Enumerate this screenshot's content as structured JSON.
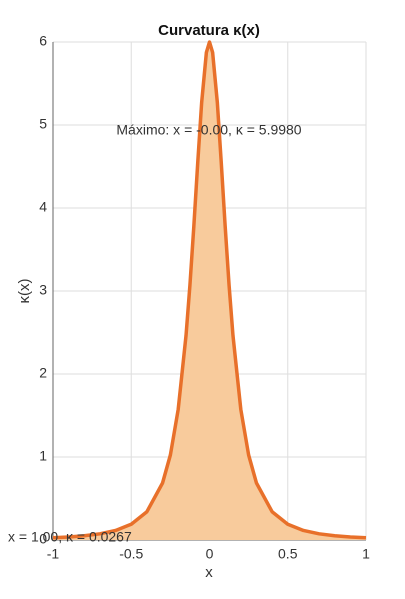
{
  "chart_data": {
    "type": "area",
    "title": "Curvatura  κ(x)",
    "x_label": "x",
    "y_label": "κ(x)",
    "annotations": [
      "Máximo:  x  =  -0.00,  κ  =  5.9980",
      "x  =  1.00,  κ  =  0.0267"
    ],
    "x": [
      -1,
      -0.9,
      -0.8,
      -0.7,
      -0.6,
      -0.5,
      -0.4,
      -0.3,
      -0.25,
      -0.2,
      -0.15,
      -0.125,
      -0.1,
      -0.075,
      -0.05,
      -0.02,
      0,
      0.02,
      0.05,
      0.075,
      0.1,
      0.125,
      0.15,
      0.2,
      0.25,
      0.3,
      0.4,
      0.5,
      0.6,
      0.7,
      0.8,
      0.9,
      1
    ],
    "series": [
      {
        "name": "κ(x)",
        "color": "#e8702a",
        "fill": "#f8cb9c",
        "values": [
          0.0267,
          0.0362,
          0.0509,
          0.0746,
          0.115,
          0.19,
          0.341,
          0.687,
          1.024,
          1.574,
          2.464,
          3.072,
          3.783,
          4.55,
          5.272,
          5.873,
          6,
          5.873,
          5.272,
          4.55,
          3.783,
          3.072,
          2.464,
          1.574,
          1.024,
          0.687,
          0.341,
          0.19,
          0.115,
          0.0746,
          0.0509,
          0.0362,
          0.0267
        ]
      }
    ],
    "xlim": [
      -1,
      1
    ],
    "xticks": [
      -1,
      -0.5,
      0,
      0.5,
      1
    ],
    "ylim": [
      0,
      6
    ],
    "yticks": [
      0,
      1,
      2,
      3,
      4,
      5,
      6
    ],
    "grid": true
  }
}
